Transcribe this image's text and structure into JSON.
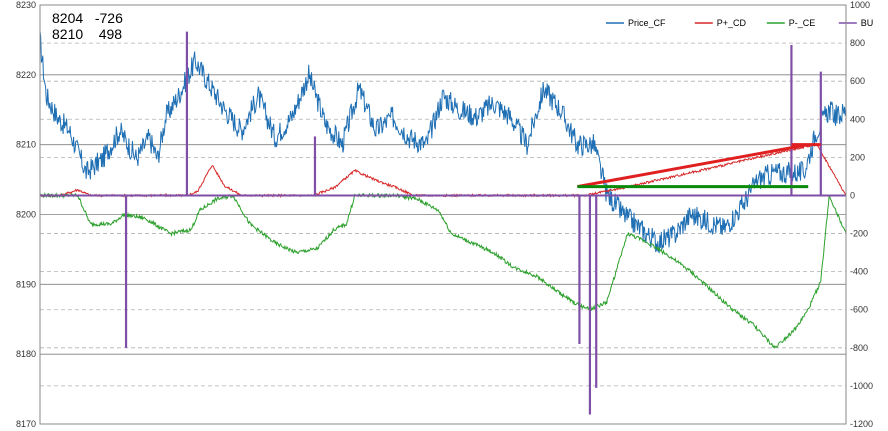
{
  "info_box": {
    "line1_a": "8204",
    "line1_b": "-726",
    "line2_a": "8210",
    "line2_b": "498"
  },
  "chart_data": {
    "type": "line",
    "title": "",
    "xlabel": "",
    "ylabel": "",
    "left_axis": {
      "ylim": [
        8170,
        8230
      ],
      "ticks": [
        "8170",
        "8180",
        "8190",
        "8200",
        "8210",
        "8220",
        "8230"
      ]
    },
    "right_axis": {
      "ylim": [
        -1200,
        1000
      ],
      "ticks": [
        "-1200",
        "-1000",
        "-800",
        "-600",
        "-400",
        "-200",
        "0",
        "200",
        "400",
        "600",
        "800",
        "1000"
      ]
    },
    "grid": true,
    "legend_position": "top-right",
    "x_count": 200,
    "series": [
      {
        "name": "Price_CF",
        "axis": "left",
        "color": "#1f6fb4",
        "anchors": [
          [
            0,
            8225
          ],
          [
            3,
            8217
          ],
          [
            8,
            8214
          ],
          [
            14,
            8212
          ],
          [
            22,
            8206
          ],
          [
            30,
            8208
          ],
          [
            38,
            8212
          ],
          [
            46,
            8208
          ],
          [
            52,
            8211
          ],
          [
            56,
            8208
          ],
          [
            60,
            8214
          ],
          [
            66,
            8217
          ],
          [
            74,
            8222
          ],
          [
            80,
            8219
          ],
          [
            88,
            8215
          ],
          [
            96,
            8212
          ],
          [
            104,
            8217
          ],
          [
            112,
            8211
          ],
          [
            120,
            8214
          ],
          [
            128,
            8220
          ],
          [
            136,
            8213
          ],
          [
            144,
            8210
          ],
          [
            152,
            8218
          ],
          [
            160,
            8212
          ],
          [
            168,
            8214
          ],
          [
            176,
            8211
          ],
          [
            184,
            8210
          ],
          [
            192,
            8217
          ],
          [
            200,
            8215
          ],
          [
            208,
            8214
          ],
          [
            216,
            8216
          ],
          [
            224,
            8214
          ],
          [
            232,
            8210
          ],
          [
            240,
            8218
          ],
          [
            248,
            8215
          ],
          [
            256,
            8210
          ],
          [
            264,
            8210
          ],
          [
            270,
            8203
          ],
          [
            278,
            8200
          ],
          [
            286,
            8198
          ],
          [
            294,
            8196
          ],
          [
            302,
            8197
          ],
          [
            310,
            8200
          ],
          [
            318,
            8199
          ],
          [
            326,
            8198
          ],
          [
            334,
            8201
          ],
          [
            342,
            8205
          ],
          [
            350,
            8206
          ],
          [
            358,
            8206
          ],
          [
            364,
            8206
          ],
          [
            370,
            8212
          ],
          [
            376,
            8215
          ],
          [
            380,
            8214
          ],
          [
            384,
            8215
          ]
        ],
        "x_scale_note": ""
      },
      {
        "name": "P+_CD",
        "axis": "right",
        "color": "#d62728",
        "anchors": [
          [
            0,
            0
          ],
          [
            10,
            0
          ],
          [
            18,
            30
          ],
          [
            24,
            0
          ],
          [
            40,
            0
          ],
          [
            52,
            0
          ],
          [
            60,
            0
          ],
          [
            70,
            0
          ],
          [
            75,
            20
          ],
          [
            82,
            160
          ],
          [
            88,
            50
          ],
          [
            96,
            0
          ],
          [
            130,
            0
          ],
          [
            140,
            40
          ],
          [
            150,
            130
          ],
          [
            160,
            80
          ],
          [
            170,
            40
          ],
          [
            178,
            0
          ],
          [
            200,
            0
          ],
          [
            260,
            0
          ],
          [
            282,
            50
          ],
          [
            370,
            270
          ],
          [
            384,
            0
          ]
        ]
      },
      {
        "name": "P-_CE",
        "axis": "right",
        "color": "#2ca02c",
        "anchors": [
          [
            0,
            0
          ],
          [
            18,
            0
          ],
          [
            24,
            -150
          ],
          [
            34,
            -150
          ],
          [
            40,
            -100
          ],
          [
            50,
            -120
          ],
          [
            62,
            -200
          ],
          [
            72,
            -180
          ],
          [
            76,
            -80
          ],
          [
            84,
            -20
          ],
          [
            92,
            0
          ],
          [
            100,
            -150
          ],
          [
            112,
            -250
          ],
          [
            122,
            -300
          ],
          [
            132,
            -280
          ],
          [
            140,
            -180
          ],
          [
            146,
            -150
          ],
          [
            150,
            0
          ],
          [
            160,
            0
          ],
          [
            170,
            0
          ],
          [
            180,
            -20
          ],
          [
            190,
            -80
          ],
          [
            196,
            -200
          ],
          [
            206,
            -250
          ],
          [
            216,
            -300
          ],
          [
            226,
            -380
          ],
          [
            236,
            -420
          ],
          [
            246,
            -500
          ],
          [
            254,
            -560
          ],
          [
            262,
            -600
          ],
          [
            270,
            -560
          ],
          [
            280,
            -200
          ],
          [
            290,
            -250
          ],
          [
            300,
            -320
          ],
          [
            310,
            -400
          ],
          [
            320,
            -500
          ],
          [
            330,
            -600
          ],
          [
            340,
            -680
          ],
          [
            350,
            -800
          ],
          [
            360,
            -700
          ],
          [
            366,
            -600
          ],
          [
            372,
            -450
          ],
          [
            376,
            0
          ],
          [
            384,
            -200
          ]
        ]
      },
      {
        "name": "BU",
        "axis": "right",
        "color": "#7f4fa8",
        "anchors": [
          [
            0,
            0
          ],
          [
            384,
            0
          ]
        ]
      }
    ],
    "bu_spikes": [
      {
        "x": 41,
        "value": -800
      },
      {
        "x": 70,
        "value": 860
      },
      {
        "x": 131,
        "value": 310
      },
      {
        "x": 257,
        "value": -780
      },
      {
        "x": 262,
        "value": -1150
      },
      {
        "x": 265,
        "value": -1010
      },
      {
        "x": 358,
        "value": 790
      },
      {
        "x": 372,
        "value": 650
      }
    ],
    "annotations": [
      {
        "type": "line",
        "color": "#e02020",
        "from": [
          256,
          8204
        ],
        "to": [
          366,
          8210
        ],
        "axis": "left"
      },
      {
        "type": "line",
        "color": "#0a8a0a",
        "from": [
          256,
          8204
        ],
        "to": [
          366,
          8204
        ],
        "axis": "left"
      },
      {
        "type": "line",
        "color": "#e02020",
        "from": [
          358,
          8210
        ],
        "to": [
          372,
          8210
        ],
        "axis": "left"
      }
    ]
  },
  "colors": {
    "plot_border": "#888888",
    "grid_major": "#808080",
    "grid_minor": "#b0b0b0"
  }
}
